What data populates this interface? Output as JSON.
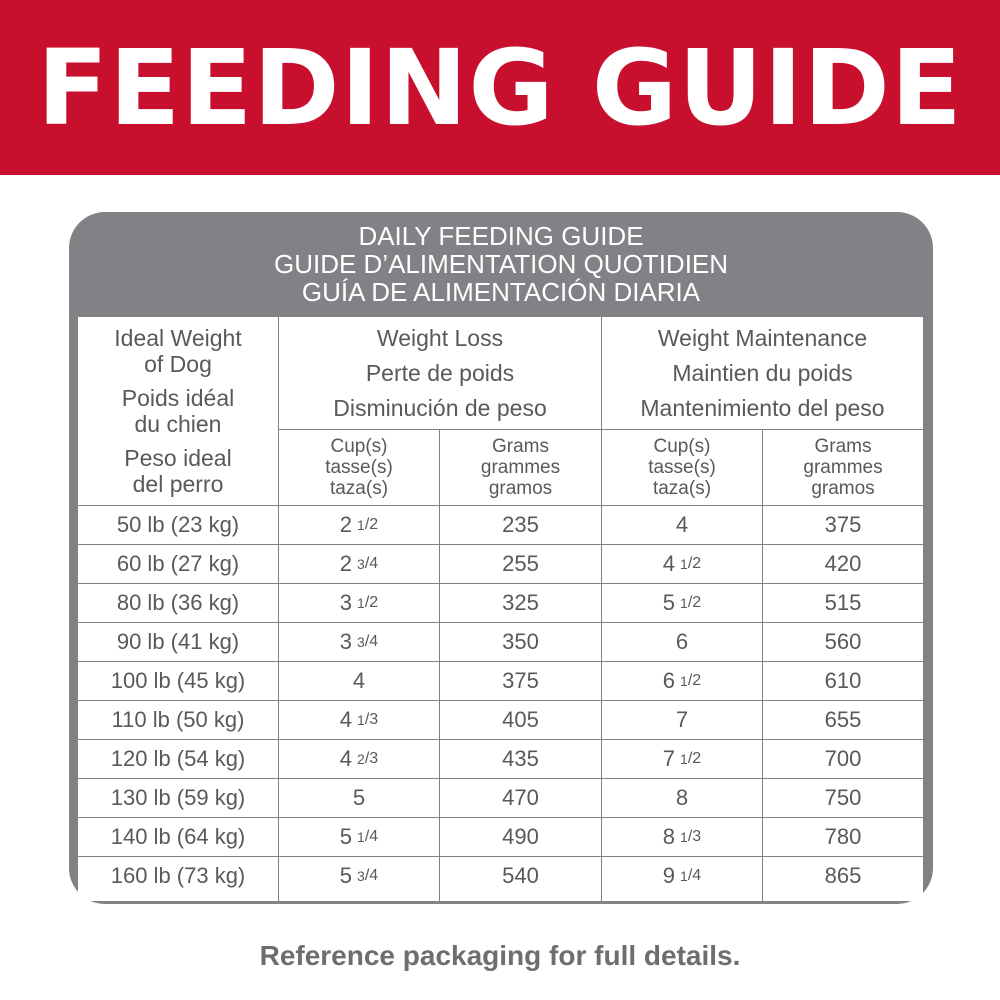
{
  "banner": {
    "title": "FEEDING GUIDE"
  },
  "card": {
    "title_lines": [
      "DAILY FEEDING GUIDE",
      "GUIDE D’ALIMENTATION QUOTIDIEN",
      "GUÍA DE ALIMENTACIÓN DIARIA"
    ]
  },
  "table": {
    "weight_header": [
      "Ideal Weight",
      "of Dog",
      "Poids idéal",
      "du chien",
      "Peso ideal",
      "del perro"
    ],
    "groups": [
      {
        "lines": [
          "Weight Loss",
          "Perte de poids",
          "Disminución de peso"
        ]
      },
      {
        "lines": [
          "Weight Maintenance",
          "Maintien du poids",
          "Mantenimiento del peso"
        ]
      }
    ],
    "subheaders": [
      {
        "lines": [
          "Cup(s)",
          "tasse(s)",
          "taza(s)"
        ]
      },
      {
        "lines": [
          "Grams",
          "grammes",
          "gramos"
        ]
      },
      {
        "lines": [
          "Cup(s)",
          "tasse(s)",
          "taza(s)"
        ]
      },
      {
        "lines": [
          "Grams",
          "grammes",
          "gramos"
        ]
      }
    ],
    "rows": [
      {
        "weight": "50 lb (23 kg)",
        "loss_cups": {
          "whole": "2",
          "num": "1",
          "den": "2"
        },
        "loss_grams": "235",
        "maint_cups": {
          "whole": "4"
        },
        "maint_grams": "375"
      },
      {
        "weight": "60 lb (27 kg)",
        "loss_cups": {
          "whole": "2",
          "num": "3",
          "den": "4"
        },
        "loss_grams": "255",
        "maint_cups": {
          "whole": "4",
          "num": "1",
          "den": "2"
        },
        "maint_grams": "420"
      },
      {
        "weight": "80 lb (36 kg)",
        "loss_cups": {
          "whole": "3",
          "num": "1",
          "den": "2"
        },
        "loss_grams": "325",
        "maint_cups": {
          "whole": "5",
          "num": "1",
          "den": "2"
        },
        "maint_grams": "515"
      },
      {
        "weight": "90 lb (41 kg)",
        "loss_cups": {
          "whole": "3",
          "num": "3",
          "den": "4"
        },
        "loss_grams": "350",
        "maint_cups": {
          "whole": "6"
        },
        "maint_grams": "560"
      },
      {
        "weight": "100 lb (45 kg)",
        "loss_cups": {
          "whole": "4"
        },
        "loss_grams": "375",
        "maint_cups": {
          "whole": "6",
          "num": "1",
          "den": "2"
        },
        "maint_grams": "610"
      },
      {
        "weight": "110 lb (50 kg)",
        "loss_cups": {
          "whole": "4",
          "num": "1",
          "den": "3"
        },
        "loss_grams": "405",
        "maint_cups": {
          "whole": "7"
        },
        "maint_grams": "655"
      },
      {
        "weight": "120 lb (54 kg)",
        "loss_cups": {
          "whole": "4",
          "num": "2",
          "den": "3"
        },
        "loss_grams": "435",
        "maint_cups": {
          "whole": "7",
          "num": "1",
          "den": "2"
        },
        "maint_grams": "700"
      },
      {
        "weight": "130 lb (59 kg)",
        "loss_cups": {
          "whole": "5"
        },
        "loss_grams": "470",
        "maint_cups": {
          "whole": "8"
        },
        "maint_grams": "750"
      },
      {
        "weight": "140 lb (64 kg)",
        "loss_cups": {
          "whole": "5",
          "num": "1",
          "den": "4"
        },
        "loss_grams": "490",
        "maint_cups": {
          "whole": "8",
          "num": "1",
          "den": "3"
        },
        "maint_grams": "780"
      },
      {
        "weight": "160 lb (73 kg)",
        "loss_cups": {
          "whole": "5",
          "num": "3",
          "den": "4"
        },
        "loss_grams": "540",
        "maint_cups": {
          "whole": "9",
          "num": "1",
          "den": "4"
        },
        "maint_grams": "865"
      }
    ]
  },
  "footer": {
    "note": "Reference packaging for full details."
  },
  "colors": {
    "banner_red": "#c8102e",
    "card_gray": "#808285",
    "text_gray": "#58595b"
  }
}
